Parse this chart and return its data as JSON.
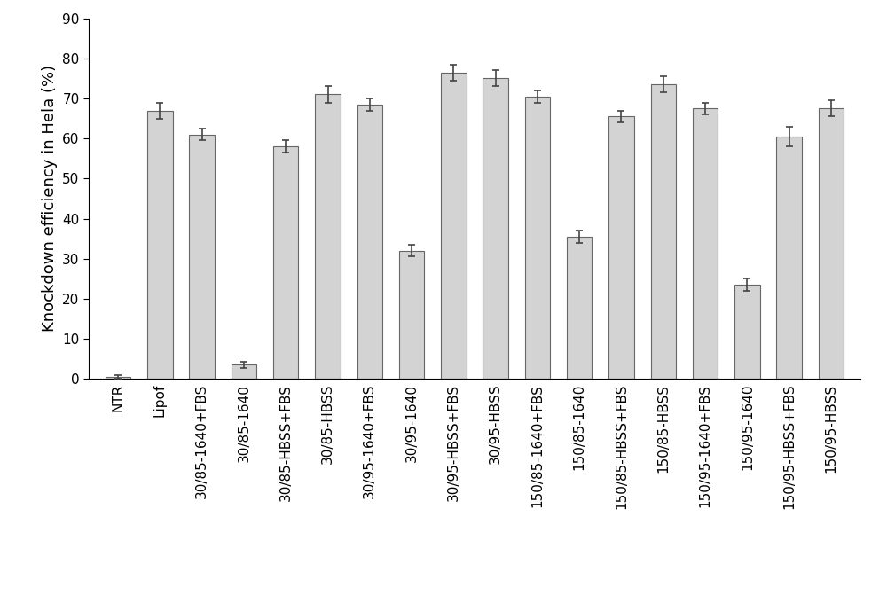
{
  "categories": [
    "NTR",
    "Lipof",
    "30/85-1640+FBS",
    "30/85-1640",
    "30/85-HBSS+FBS",
    "30/85-HBSS",
    "30/95-1640+FBS",
    "30/95-1640",
    "30/95-HBSS+FBS",
    "30/95-HBSS",
    "150/85-1640+FBS",
    "150/85-1640",
    "150/85-HBSS+FBS",
    "150/85-HBSS",
    "150/95-1640+FBS",
    "150/95-1640",
    "150/95-HBSS+FBS",
    "150/95-HBSS"
  ],
  "values": [
    0.5,
    67.0,
    61.0,
    3.5,
    58.0,
    71.0,
    68.5,
    32.0,
    76.5,
    75.0,
    70.5,
    35.5,
    65.5,
    73.5,
    67.5,
    23.5,
    60.5,
    67.5
  ],
  "errors": [
    0.5,
    2.0,
    1.5,
    0.8,
    1.5,
    2.0,
    1.5,
    1.5,
    2.0,
    2.0,
    1.5,
    1.5,
    1.5,
    2.0,
    1.5,
    1.5,
    2.5,
    2.0
  ],
  "bar_color": "#d3d3d3",
  "bar_edgecolor": "#666666",
  "error_color": "#444444",
  "ylabel": "Knockdown efficiency in Hela (%)",
  "ylim": [
    0,
    90
  ],
  "yticks": [
    0,
    10,
    20,
    30,
    40,
    50,
    60,
    70,
    80,
    90
  ],
  "ylabel_fontsize": 13,
  "tick_fontsize": 11,
  "xtick_fontsize": 11,
  "bar_width": 0.6,
  "figure_width": 10.0,
  "figure_height": 6.89
}
